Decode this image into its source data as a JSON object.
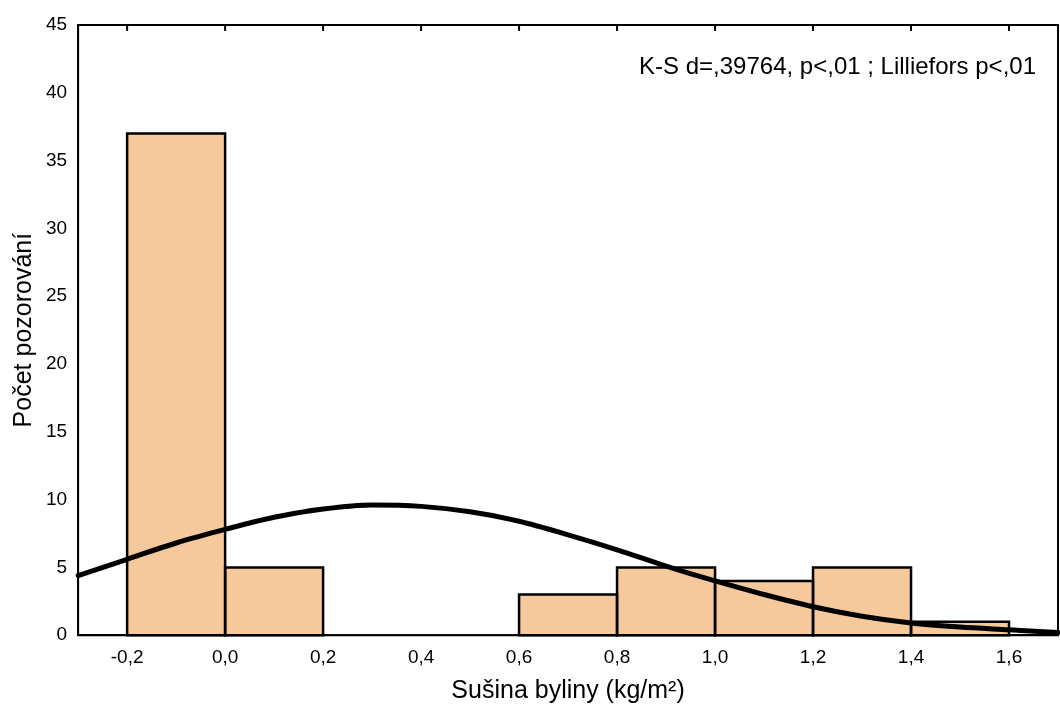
{
  "chart_data": {
    "type": "histogram",
    "xlabel": "Sušina byliny (kg/m²)",
    "ylabel": "Počet pozorování",
    "annotations": [
      "K-S d=,39764, p<,01 ; Lilliefors p<,01"
    ],
    "bins": [
      -0.2,
      0,
      0.2,
      0.4,
      0.6,
      0.8,
      1.0,
      1.2,
      1.4,
      1.6
    ],
    "values": [
      37,
      5,
      0,
      0,
      3,
      5,
      4,
      5,
      1
    ],
    "color": "#f5c99b",
    "series": [
      {
        "type": "line",
        "color": "#000000",
        "x": [
          -0.3,
          -0.2,
          -0.1,
          0,
          0.1,
          0.2,
          0.3,
          0.4,
          0.5,
          0.6,
          0.7,
          0.8,
          0.9,
          1.0,
          1.1,
          1.2,
          1.3,
          1.4,
          1.5,
          1.6,
          1.7
        ],
        "values": [
          4.4,
          5.6,
          6.8,
          7.8,
          8.7,
          9.3,
          9.6,
          9.5,
          9.1,
          8.4,
          7.4,
          6.3,
          5.1,
          4.0,
          3.0,
          2.1,
          1.4,
          0.9,
          0.6,
          0.4,
          0.2
        ]
      }
    ],
    "xlim": [
      -0.3,
      1.7
    ],
    "xticks": [
      {
        "value": -0.2,
        "label": "-0,2"
      },
      {
        "value": 0,
        "label": "0,0"
      },
      {
        "value": 0.2,
        "label": "0,2"
      },
      {
        "value": 0.4,
        "label": "0,4"
      },
      {
        "value": 0.6,
        "label": "0,6"
      },
      {
        "value": 0.8,
        "label": "0,8"
      },
      {
        "value": 1.0,
        "label": "1,0"
      },
      {
        "value": 1.2,
        "label": "1,2"
      },
      {
        "value": 1.4,
        "label": "1,4"
      },
      {
        "value": 1.6,
        "label": "1,6"
      }
    ],
    "ylim": [
      0,
      45
    ],
    "yticks": [
      0,
      5,
      10,
      15,
      20,
      25,
      30,
      35,
      40,
      45
    ],
    "grid": false,
    "legend": false,
    "marker": "none",
    "line_style": "solid"
  }
}
